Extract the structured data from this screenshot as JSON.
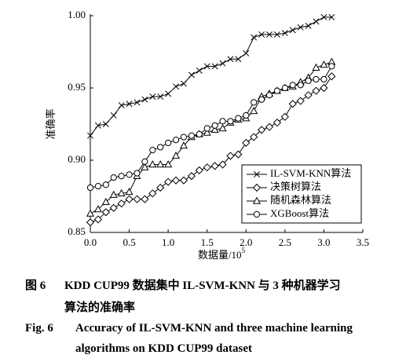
{
  "chart_data": {
    "type": "line",
    "ylabel": "准确率",
    "xlabel": "数据量/10",
    "xlabel_exponent": "5",
    "x": [
      0.0,
      0.1,
      0.2,
      0.3,
      0.4,
      0.5,
      0.6,
      0.7,
      0.8,
      0.9,
      1.0,
      1.1,
      1.2,
      1.3,
      1.4,
      1.5,
      1.6,
      1.7,
      1.8,
      1.9,
      2.0,
      2.1,
      2.2,
      2.3,
      2.4,
      2.5,
      2.6,
      2.7,
      2.8,
      2.9,
      3.0,
      3.1
    ],
    "series": [
      {
        "name": "IL-SVM-KNN算法",
        "color": "#000000",
        "marker": "cross",
        "values": [
          0.917,
          0.924,
          0.925,
          0.931,
          0.938,
          0.939,
          0.94,
          0.942,
          0.944,
          0.944,
          0.946,
          0.951,
          0.953,
          0.959,
          0.962,
          0.965,
          0.965,
          0.967,
          0.97,
          0.97,
          0.974,
          0.985,
          0.987,
          0.987,
          0.987,
          0.988,
          0.99,
          0.992,
          0.993,
          0.996,
          0.999,
          0.999
        ]
      },
      {
        "name": "决策树算法",
        "color": "#000000",
        "marker": "diamond",
        "values": [
          0.857,
          0.859,
          0.864,
          0.867,
          0.87,
          0.873,
          0.873,
          0.873,
          0.877,
          0.881,
          0.885,
          0.886,
          0.886,
          0.889,
          0.893,
          0.895,
          0.896,
          0.897,
          0.903,
          0.904,
          0.912,
          0.916,
          0.921,
          0.923,
          0.926,
          0.93,
          0.939,
          0.941,
          0.945,
          0.948,
          0.95,
          0.958
        ]
      },
      {
        "name": "随机森林算法",
        "color": "#000000",
        "marker": "triangle",
        "values": [
          0.863,
          0.866,
          0.871,
          0.876,
          0.877,
          0.878,
          0.889,
          0.895,
          0.897,
          0.897,
          0.897,
          0.903,
          0.91,
          0.916,
          0.918,
          0.919,
          0.921,
          0.922,
          0.926,
          0.928,
          0.929,
          0.934,
          0.944,
          0.946,
          0.948,
          0.95,
          0.951,
          0.954,
          0.957,
          0.964,
          0.966,
          0.968
        ]
      },
      {
        "name": "XGBoost算法",
        "color": "#000000",
        "marker": "circle",
        "values": [
          0.881,
          0.882,
          0.883,
          0.888,
          0.889,
          0.89,
          0.891,
          0.899,
          0.907,
          0.909,
          0.912,
          0.914,
          0.916,
          0.917,
          0.918,
          0.922,
          0.924,
          0.927,
          0.927,
          0.929,
          0.931,
          0.94,
          0.942,
          0.945,
          0.948,
          0.95,
          0.952,
          0.952,
          0.955,
          0.956,
          0.956,
          0.965
        ]
      }
    ],
    "xlim": [
      0,
      3.5
    ],
    "xticks": [
      {
        "value": 0,
        "label": "0.0"
      },
      0.5,
      {
        "value": 1,
        "label": "1.0"
      },
      1.5,
      {
        "value": 2,
        "label": "2.0"
      },
      2.5,
      {
        "value": 3,
        "label": "3.0"
      },
      3.5
    ],
    "ylim": [
      0.85,
      1.0
    ],
    "yticks": [
      {
        "value": 0.85,
        "label": "0.85"
      },
      {
        "value": 0.9,
        "label": "0.90"
      },
      {
        "value": 0.95,
        "label": "0.95"
      },
      {
        "value": 1.0,
        "label": "1.00"
      }
    ],
    "grid": false,
    "legend": "lower right"
  },
  "caption": {
    "cn_label": "图 6",
    "cn_lines": [
      "KDD CUP99 数据集中 IL-SVM-KNN 与 3 种机器学习",
      "算法的准确率"
    ],
    "en_label": "Fig. 6",
    "en_lines": [
      "Accuracy of IL-SVM-KNN and three machine learning",
      "algorithms on KDD CUP99 dataset"
    ]
  }
}
